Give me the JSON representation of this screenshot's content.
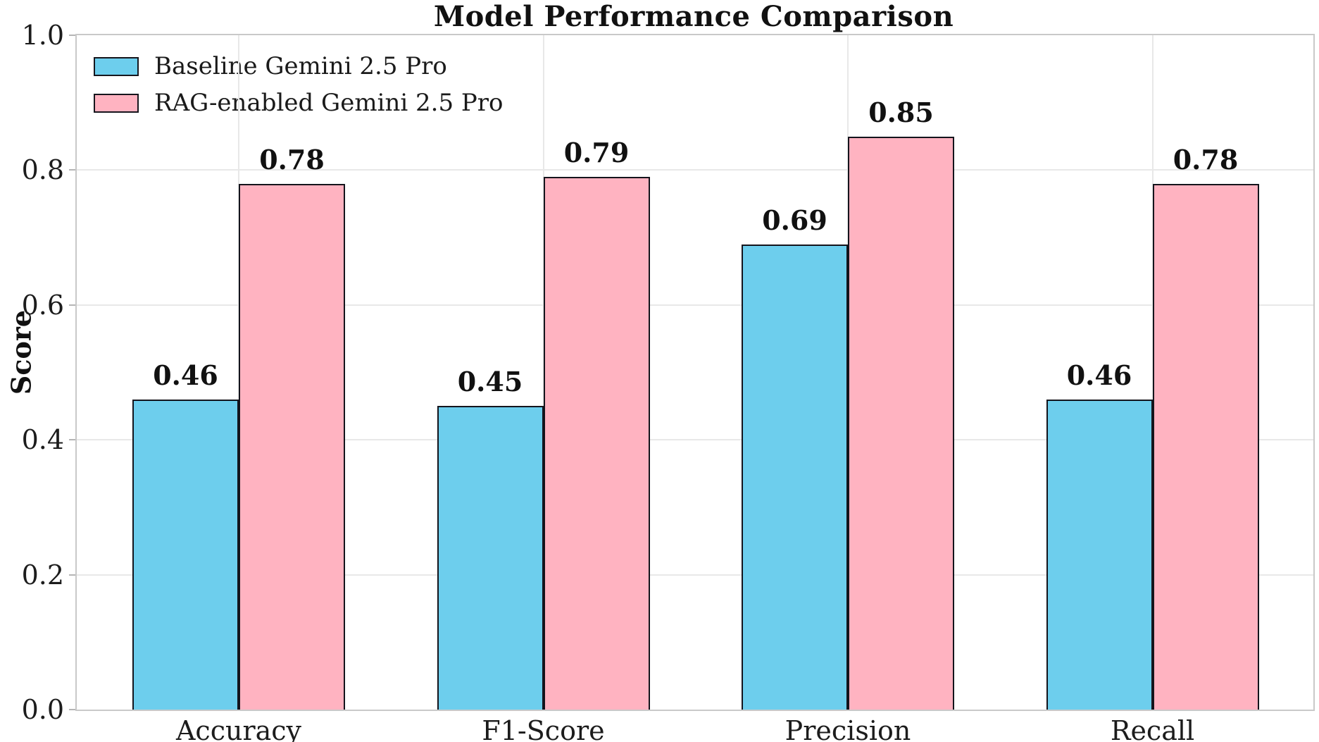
{
  "chart_data": {
    "type": "bar",
    "title": "Model Performance Comparison",
    "xlabel": "",
    "ylabel": "Score",
    "categories": [
      "Accuracy",
      "F1-Score",
      "Precision",
      "Recall"
    ],
    "series": [
      {
        "name": "Baseline Gemini 2.5 Pro",
        "color": "#6DCEED",
        "values": [
          0.46,
          0.45,
          0.69,
          0.46
        ]
      },
      {
        "name": "RAG-enabled Gemini 2.5 Pro",
        "color": "#FFB3C1",
        "values": [
          0.78,
          0.79,
          0.85,
          0.78
        ]
      }
    ],
    "value_labels": [
      [
        "0.46",
        "0.45",
        "0.69",
        "0.46"
      ],
      [
        "0.78",
        "0.79",
        "0.85",
        "0.78"
      ]
    ],
    "ylim": [
      0.0,
      1.0
    ],
    "yticks": [
      {
        "value": 0.0,
        "label": "0.0"
      },
      {
        "value": 0.2,
        "label": "0.2"
      },
      {
        "value": 0.4,
        "label": "0.4"
      },
      {
        "value": 0.6,
        "label": "0.6"
      },
      {
        "value": 0.8,
        "label": "0.8"
      },
      {
        "value": 1.0,
        "label": "1.0"
      }
    ],
    "grid": "both-light-gray",
    "legend_position": "upper-left",
    "bar_edge_color": "#14141c",
    "spine_color": "#c9c9c9",
    "grid_color": "#e8e8e8"
  }
}
